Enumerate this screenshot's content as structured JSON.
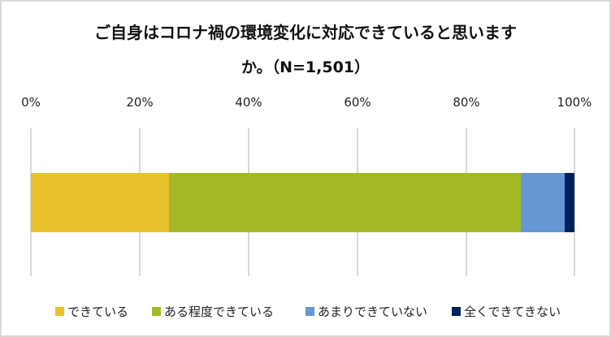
{
  "chart_data": {
    "type": "bar",
    "orientation": "horizontal-stacked-100",
    "title": "ご自身はコロナ禍の環境変化に対応できていると思いますか。（N=1,501）",
    "title_lines": [
      "ご自身はコロナ禍の環境変化に対応できていると思います",
      "か。（N=1,501）"
    ],
    "xlabel": "",
    "ylabel": "",
    "xlim": [
      0,
      100
    ],
    "x_ticks": [
      "0%",
      "20%",
      "40%",
      "60%",
      "80%",
      "100%"
    ],
    "grid": true,
    "legend_position": "bottom",
    "categories": [
      ""
    ],
    "series": [
      {
        "name": "できている",
        "values": [
          25.4
        ],
        "color": "#E8C12C"
      },
      {
        "name": "ある程度できている",
        "values": [
          64.7
        ],
        "color": "#A5B826"
      },
      {
        "name": "あまりできていない",
        "values": [
          8.1
        ],
        "color": "#6497D4"
      },
      {
        "name": "全くできてきない",
        "values": [
          1.8
        ],
        "color": "#00215E"
      }
    ]
  },
  "title": {
    "line1": "ご自身はコロナ禍の環境変化に対応できていると思います",
    "line2": "か。（N=1,501）"
  },
  "axis": {
    "ticks": [
      "0%",
      "20%",
      "40%",
      "60%",
      "80%",
      "100%"
    ]
  },
  "legend": {
    "items": [
      {
        "label": "できている",
        "color": "#E8C12C"
      },
      {
        "label": "ある程度できている",
        "color": "#A5B826"
      },
      {
        "label": "あまりできていない",
        "color": "#6497D4"
      },
      {
        "label": "全くできてきない",
        "color": "#00215E"
      }
    ]
  }
}
